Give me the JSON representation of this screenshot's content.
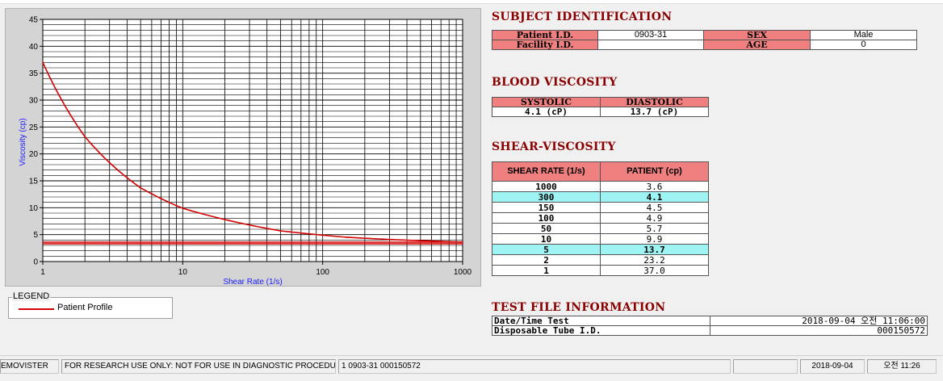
{
  "chart_data": {
    "type": "line",
    "title": "",
    "xlabel": "Shear Rate (1/s)",
    "ylabel": "Viscosity (cp)",
    "xscale": "log",
    "xlim": [
      1,
      1000
    ],
    "ylim": [
      0,
      45
    ],
    "x_ticks": [
      1,
      10,
      100,
      1000
    ],
    "y_ticks": [
      0,
      5,
      10,
      15,
      20,
      25,
      30,
      35,
      40,
      45
    ],
    "grid": true,
    "series": [
      {
        "name": "Patient Profile",
        "color": "#d40000",
        "x": [
          1,
          2,
          5,
          10,
          50,
          100,
          150,
          300,
          1000
        ],
        "y": [
          37.0,
          23.2,
          13.7,
          9.9,
          5.7,
          4.9,
          4.5,
          4.1,
          3.6
        ]
      }
    ],
    "reference_lines": [
      {
        "y": 3.6,
        "color": "#d40000"
      },
      {
        "y": 3.3,
        "color": "#d40000"
      }
    ]
  },
  "legend": {
    "title": "LEGEND",
    "items": [
      {
        "label": "Patient Profile",
        "color": "#d40000"
      }
    ]
  },
  "subject": {
    "title": "SUBJECT IDENTIFICATION",
    "patient_id_label": "Patient I.D.",
    "patient_id": "0903-31",
    "sex_label": "SEX",
    "sex": "Male",
    "facility_label": "Facility I.D.",
    "facility_id": "",
    "age_label": "AGE",
    "age": "0"
  },
  "blood_viscosity": {
    "title": "BLOOD VISCOSITY",
    "systolic_label": "SYSTOLIC",
    "diastolic_label": "DIASTOLIC",
    "systolic": "4.1 (cP)",
    "diastolic": "13.7 (cP)"
  },
  "shear_viscosity": {
    "title": "SHEAR-VISCOSITY",
    "col1": "SHEAR RATE (1/s)",
    "col2": "PATIENT (cp)",
    "rows": [
      {
        "rate": "1000",
        "value": "3.6",
        "highlight": false
      },
      {
        "rate": "300",
        "value": "4.1",
        "highlight": true
      },
      {
        "rate": "150",
        "value": "4.5",
        "highlight": false
      },
      {
        "rate": "100",
        "value": "4.9",
        "highlight": false
      },
      {
        "rate": "50",
        "value": "5.7",
        "highlight": false
      },
      {
        "rate": "10",
        "value": "9.9",
        "highlight": false
      },
      {
        "rate": "5",
        "value": "13.7",
        "highlight": true
      },
      {
        "rate": "2",
        "value": "23.2",
        "highlight": false
      },
      {
        "rate": "1",
        "value": "37.0",
        "highlight": false
      }
    ]
  },
  "test_file": {
    "title": "TEST FILE INFORMATION",
    "datetime_label": "Date/Time Test",
    "datetime": "2018-09-04  오전 11:06:00",
    "tube_label": "Disposable Tube I.D.",
    "tube_id": "000150572"
  },
  "status_bar": {
    "app": "EMOVISTER",
    "notice": "FOR RESEARCH USE ONLY: NOT FOR USE IN DIAGNOSTIC PROCEDURES",
    "record": "1  0903-31  000150572",
    "empty": "",
    "date": "2018-09-04",
    "time": "오전 11:26"
  }
}
